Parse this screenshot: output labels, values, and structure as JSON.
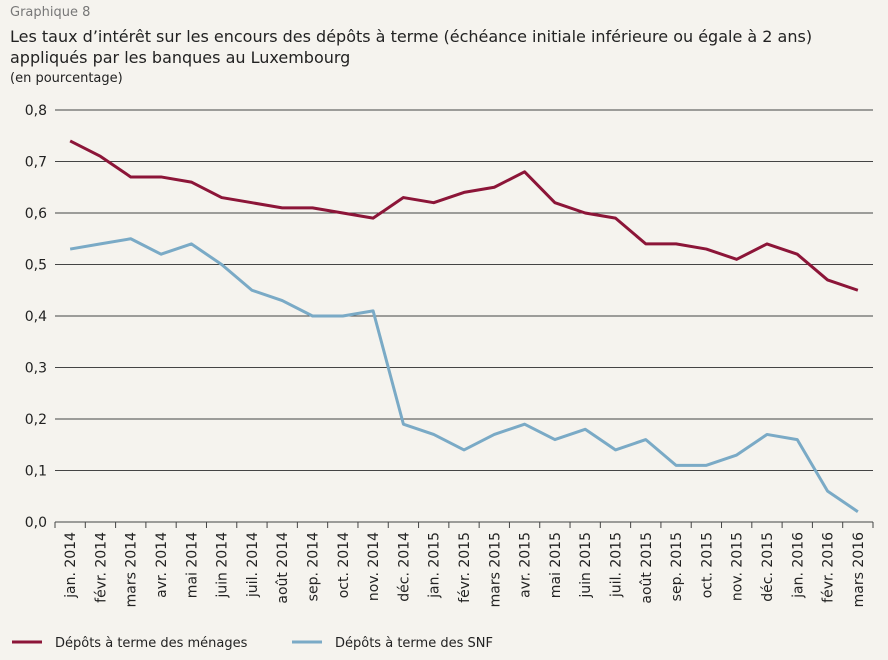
{
  "chart_data": {
    "type": "line",
    "supertitle": "Graphique 8",
    "title": [
      "Les taux d’intérêt sur les encours des dépôts à terme (échéance initiale inférieure ou égale à 2 ans)",
      "appliqués par les banques au Luxembourg"
    ],
    "subtitle": "(en pourcentage)",
    "categories": [
      "jan. 2014",
      "févr. 2014",
      "mars 2014",
      "avr. 2014",
      "mai 2014",
      "juin 2014",
      "juil. 2014",
      "août 2014",
      "sep. 2014",
      "oct. 2014",
      "nov. 2014",
      "déc. 2014",
      "jan. 2015",
      "févr. 2015",
      "mars 2015",
      "avr. 2015",
      "mai 2015",
      "juin 2015",
      "juil. 2015",
      "août 2015",
      "sep. 2015",
      "oct. 2015",
      "nov. 2015",
      "déc. 2015",
      "jan. 2016",
      "févr. 2016",
      "mars 2016"
    ],
    "series": [
      {
        "name": "Dépôts à terme des ménages",
        "color": "#8c1538",
        "values": [
          0.74,
          0.71,
          0.67,
          0.67,
          0.66,
          0.63,
          0.62,
          0.61,
          0.61,
          0.6,
          0.59,
          0.63,
          0.62,
          0.64,
          0.65,
          0.68,
          0.62,
          0.6,
          0.59,
          0.54,
          0.54,
          0.53,
          0.51,
          0.54,
          0.52,
          0.47,
          0.45
        ]
      },
      {
        "name": "Dépôts à terme des SNF",
        "color": "#7aaac6",
        "values": [
          0.53,
          0.54,
          0.55,
          0.52,
          0.54,
          0.5,
          0.45,
          0.43,
          0.4,
          0.4,
          0.41,
          0.19,
          0.17,
          0.14,
          0.17,
          0.19,
          0.16,
          0.18,
          0.14,
          0.16,
          0.11,
          0.11,
          0.13,
          0.17,
          0.16,
          0.06,
          0.02
        ]
      }
    ],
    "ylim": [
      0,
      0.8
    ],
    "yticks": [
      {
        "value": 0,
        "label": "0,0"
      },
      {
        "value": 0.1,
        "label": "0,1"
      },
      {
        "value": 0.2,
        "label": "0,2"
      },
      {
        "value": 0.3,
        "label": "0,3"
      },
      {
        "value": 0.4,
        "label": "0,4"
      },
      {
        "value": 0.5,
        "label": "0,5"
      },
      {
        "value": 0.6,
        "label": "0,6"
      },
      {
        "value": 0.7,
        "label": "0,7"
      },
      {
        "value": 0.8,
        "label": "0,8"
      }
    ],
    "grid": true,
    "legend": "bottom"
  }
}
